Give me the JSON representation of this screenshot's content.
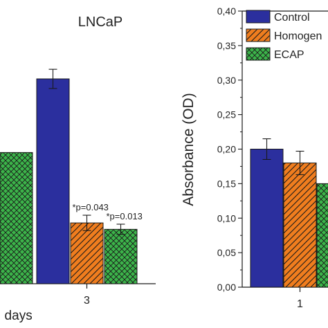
{
  "chart_data": [
    {
      "type": "bar",
      "title": "LNCaP",
      "xlabel": ", days",
      "ylabel": "",
      "ylim": [
        0,
        0.4
      ],
      "categories": [
        "",
        "3"
      ],
      "series": [
        {
          "name": "Control",
          "color": "#2b2f9e",
          "pattern": "solid",
          "values": [
            null,
            0.32
          ],
          "errors": [
            null,
            0.015
          ]
        },
        {
          "name": "Homogen",
          "color": "#f07d1e",
          "pattern": "diagonal-hatch",
          "values": [
            null,
            0.095
          ],
          "errors": [
            null,
            0.012
          ]
        },
        {
          "name": "ECAP",
          "color": "#3cb44a",
          "pattern": "cross-hatch",
          "values": [
            0.205,
            0.085
          ],
          "errors": [
            null,
            0.008
          ]
        }
      ],
      "annotations": [
        {
          "category": "3",
          "series": "Homogen",
          "text": "*p=0.043"
        },
        {
          "category": "3",
          "series": "ECAP",
          "text": "*p=0.013"
        }
      ]
    },
    {
      "type": "bar",
      "title": "",
      "xlabel": "",
      "ylabel": "Absorbance (OD)",
      "ylim": [
        0,
        0.4
      ],
      "yticks": [
        "0,00",
        "0,05",
        "0,10",
        "0,15",
        "0,20",
        "0,25",
        "0,30",
        "0,35",
        "0,40"
      ],
      "categories": [
        "1"
      ],
      "legend_position": "top-left",
      "series": [
        {
          "name": "Control",
          "color": "#2b2f9e",
          "pattern": "solid",
          "values": [
            0.2
          ],
          "errors": [
            0.015
          ]
        },
        {
          "name": "Homogen",
          "color": "#f07d1e",
          "pattern": "diagonal-hatch",
          "values": [
            0.18
          ],
          "errors": [
            0.017
          ]
        },
        {
          "name": "ECAP",
          "color": "#3cb44a",
          "pattern": "cross-hatch",
          "values": [
            0.15
          ],
          "errors": [
            null
          ]
        }
      ]
    }
  ]
}
